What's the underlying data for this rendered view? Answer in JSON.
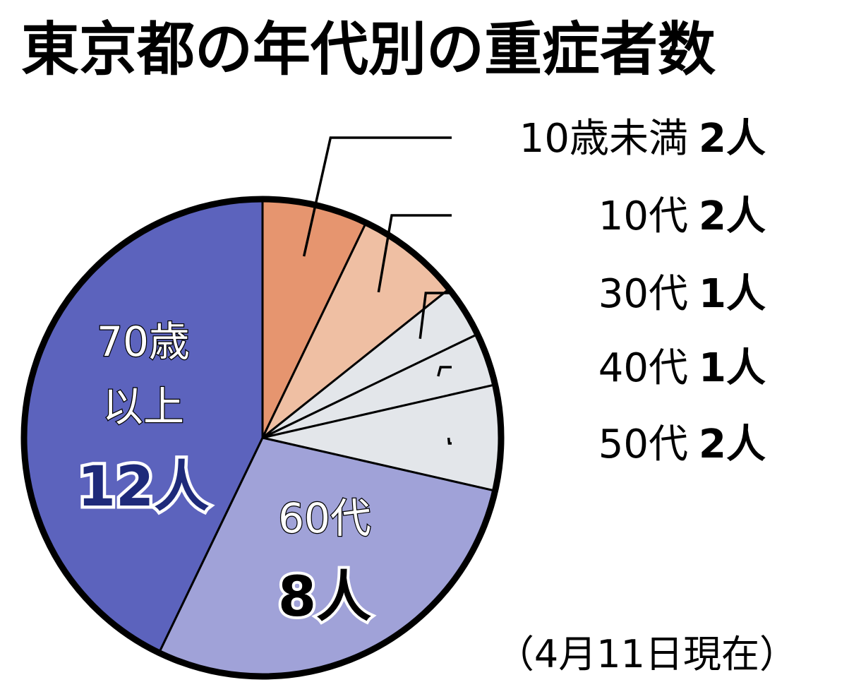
{
  "chart_data": {
    "type": "pie",
    "title": "東京都の年代別の重症者数",
    "note": "（4月11日現在）",
    "slices": [
      {
        "name": "10歳未満",
        "value_label": "2人",
        "value": 2,
        "color": "#E6956F"
      },
      {
        "name": "10代",
        "value_label": "2人",
        "value": 2,
        "color": "#EFBFA3"
      },
      {
        "name": "30代",
        "value_label": "1人",
        "value": 1,
        "color": "#E3E6EA"
      },
      {
        "name": "40代",
        "value_label": "1人",
        "value": 1,
        "color": "#E3E6EA"
      },
      {
        "name": "50代",
        "value_label": "2人",
        "value": 2,
        "color": "#E3E6EA"
      },
      {
        "name": "60代",
        "value_label": "8人",
        "value": 8,
        "color": "#A0A2D8"
      },
      {
        "name": "70歳以上",
        "value_label": "12人",
        "value": 12,
        "color": "#5C63BD"
      }
    ],
    "inside_labels": {
      "70plus": {
        "line1": "70歳",
        "line2": "以上",
        "value": "12人"
      },
      "60s": {
        "line1": "60代",
        "value": "8人"
      }
    }
  }
}
